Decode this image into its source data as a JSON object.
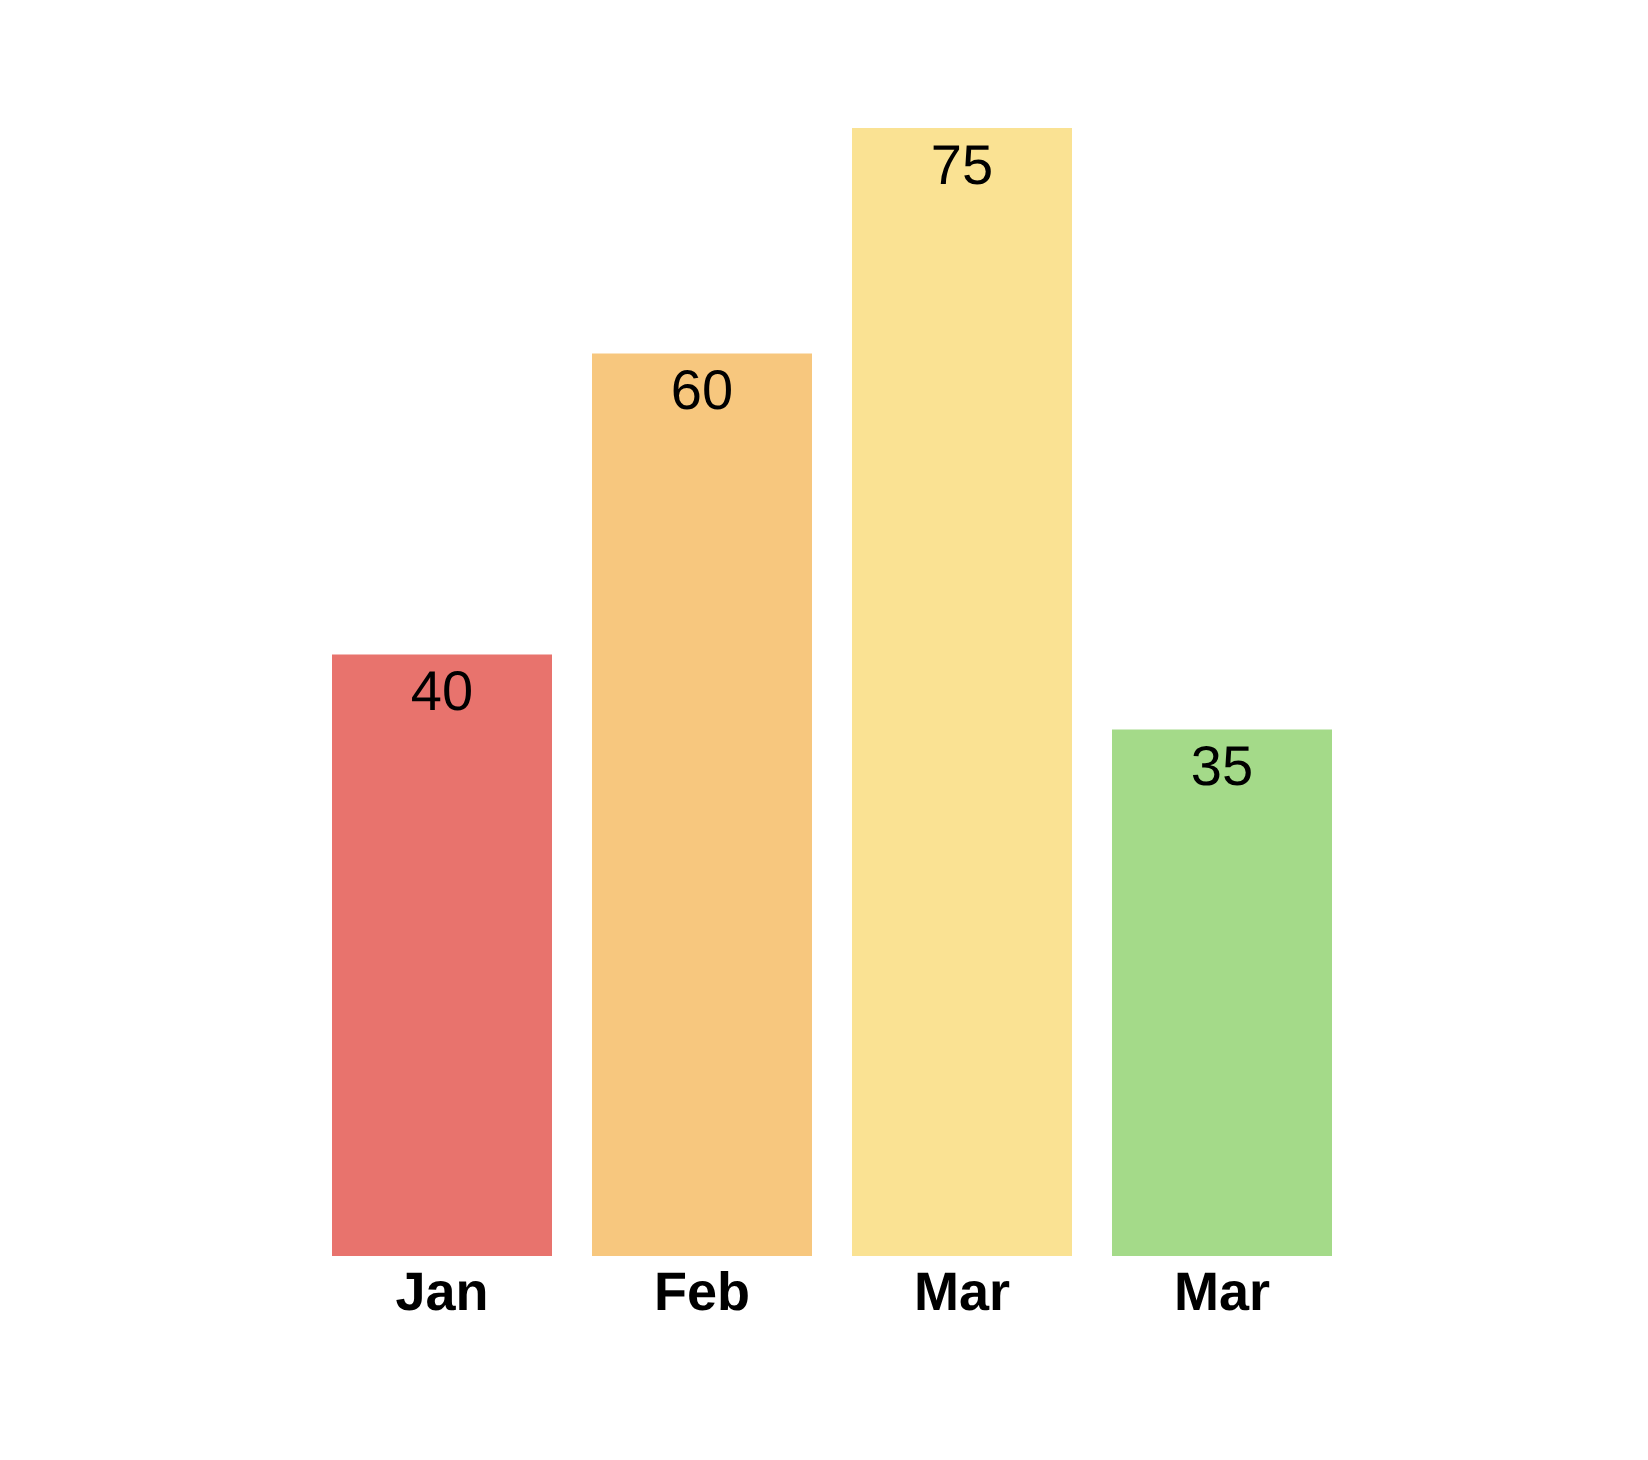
{
  "chart_data": {
    "type": "bar",
    "categories": [
      "Jan",
      "Feb",
      "Mar",
      "Mar"
    ],
    "values": [
      40,
      60,
      75,
      35
    ],
    "colors": [
      "#e8736d",
      "#f7c77e",
      "#fae293",
      "#a4da89"
    ],
    "data_labels": true
  }
}
